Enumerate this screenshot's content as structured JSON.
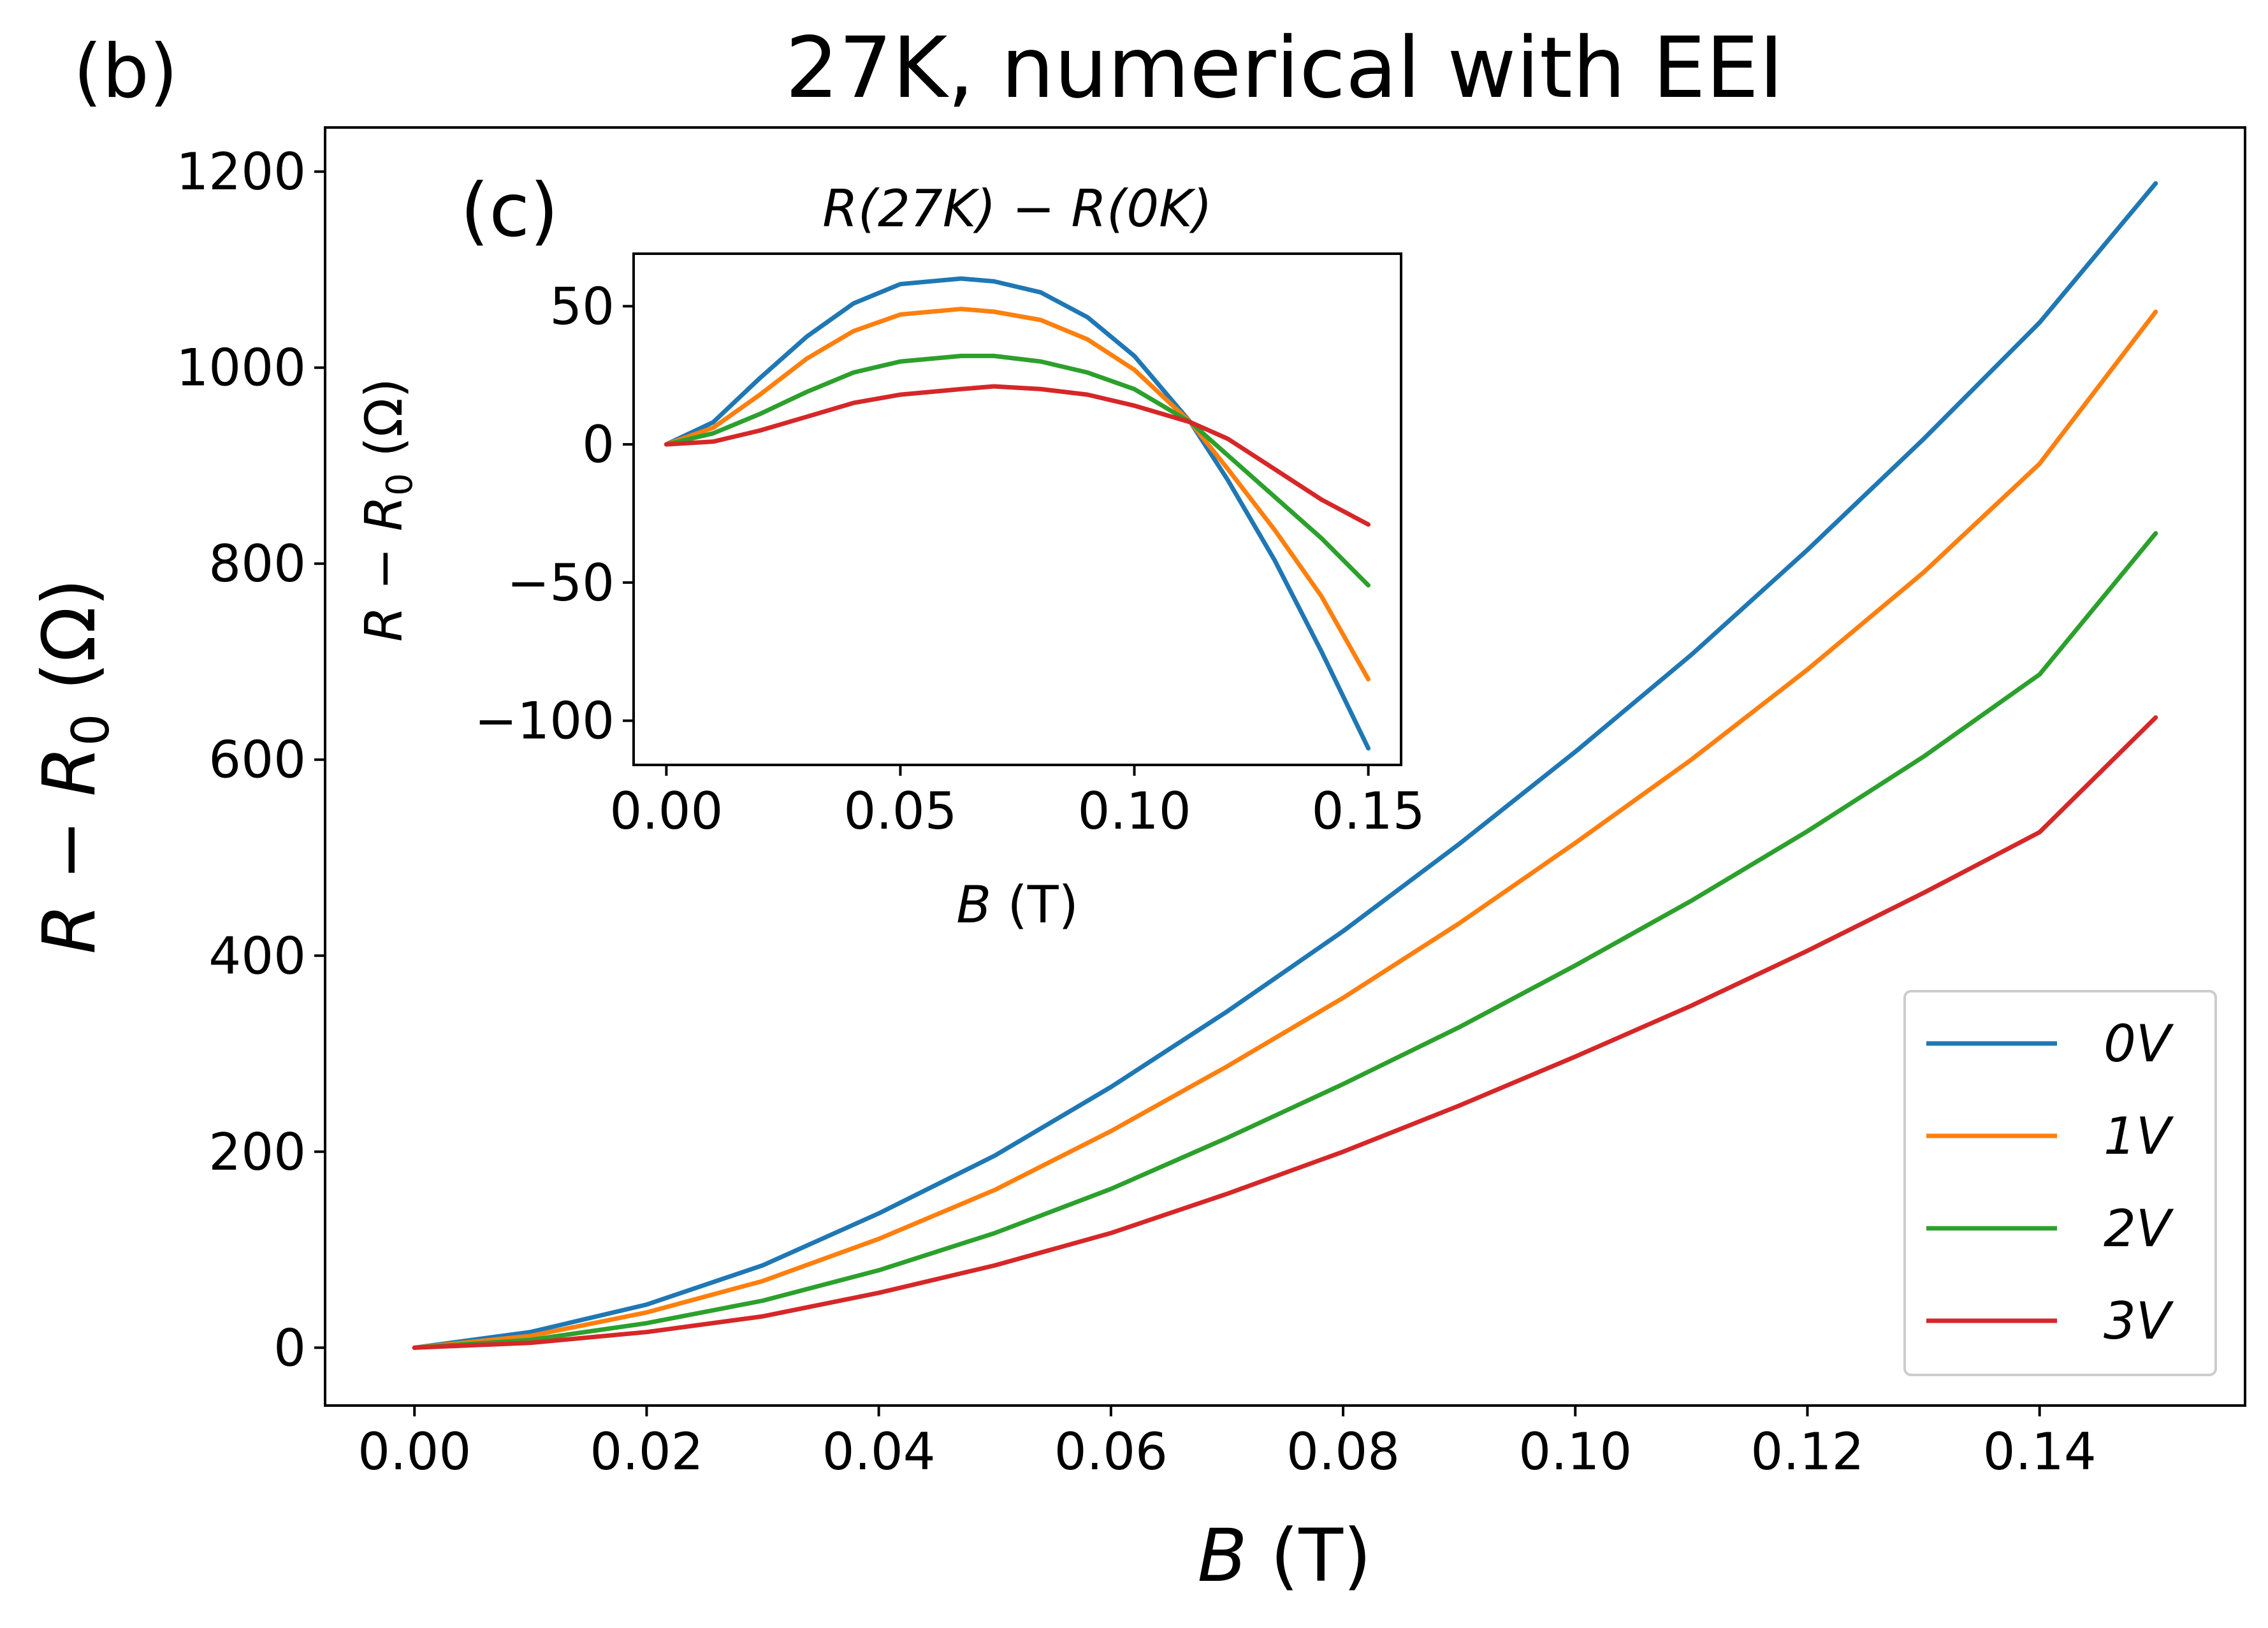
{
  "chart_data": [
    {
      "type": "line",
      "panel_label": "(b)",
      "title": "27K, numerical with EEI",
      "xlabel": "B (T)",
      "ylabel": "R − R₀ (Ω)",
      "xlim": [
        -0.0077,
        0.1577
      ],
      "ylim": [
        -59,
        1245
      ],
      "xticks": [
        0.0,
        0.02,
        0.04,
        0.06,
        0.08,
        0.1,
        0.12,
        0.14
      ],
      "xtick_labels": [
        "0.00",
        "0.02",
        "0.04",
        "0.06",
        "0.08",
        "0.10",
        "0.12",
        "0.14"
      ],
      "yticks": [
        0,
        200,
        400,
        600,
        800,
        1000,
        1200
      ],
      "ytick_labels": [
        "0",
        "200",
        "400",
        "600",
        "800",
        "1000",
        "1200"
      ],
      "legend_position": "lower-right",
      "x": [
        0.0,
        0.01,
        0.02,
        0.03,
        0.04,
        0.05,
        0.06,
        0.07,
        0.08,
        0.09,
        0.1,
        0.11,
        0.12,
        0.13,
        0.14,
        0.15
      ],
      "series": [
        {
          "name": "0V",
          "color": "#1f77b4",
          "values": [
            0,
            16,
            44,
            84,
            137,
            196,
            266,
            343,
            425,
            514,
            608,
            707,
            814,
            927,
            1046,
            1188
          ]
        },
        {
          "name": "1V",
          "color": "#ff7f0e",
          "values": [
            0,
            12,
            36,
            68,
            111,
            161,
            221,
            287,
            357,
            433,
            515,
            600,
            692,
            791,
            902,
            1057
          ]
        },
        {
          "name": "2V",
          "color": "#2ca02c",
          "values": [
            0,
            8,
            25,
            48,
            79,
            117,
            162,
            214,
            269,
            327,
            390,
            456,
            527,
            603,
            687,
            831
          ]
        },
        {
          "name": "3V",
          "color": "#d62728",
          "values": [
            0,
            5,
            16,
            32,
            56,
            84,
            117,
            157,
            200,
            247,
            297,
            349,
            405,
            464,
            526,
            643
          ]
        }
      ]
    },
    {
      "type": "line",
      "panel_label": "(c)",
      "title": "R(27K) − R(0K)",
      "xlabel": "B (T)",
      "ylabel": "R − R₀ (Ω)",
      "xlim": [
        -0.007,
        0.157
      ],
      "ylim": [
        -116,
        69
      ],
      "xticks": [
        0.0,
        0.05,
        0.1,
        0.15
      ],
      "xtick_labels": [
        "0.00",
        "0.05",
        "0.10",
        "0.15"
      ],
      "yticks": [
        50,
        0,
        -50,
        -100
      ],
      "ytick_labels": [
        "50",
        "0",
        "−50",
        "−100"
      ],
      "x": [
        0.0,
        0.01,
        0.02,
        0.03,
        0.04,
        0.05,
        0.063,
        0.07,
        0.08,
        0.09,
        0.1,
        0.112,
        0.12,
        0.13,
        0.14,
        0.15
      ],
      "series": [
        {
          "name": "0V",
          "color": "#1f77b4",
          "values": [
            0,
            8,
            24,
            39,
            51,
            58,
            60,
            59,
            55,
            46,
            32,
            8,
            -13,
            -42,
            -75,
            -110
          ]
        },
        {
          "name": "1V",
          "color": "#ff7f0e",
          "values": [
            0,
            6,
            18,
            31,
            41,
            47,
            49,
            48,
            45,
            38,
            27,
            8,
            -9,
            -31,
            -55,
            -85
          ]
        },
        {
          "name": "2V",
          "color": "#2ca02c",
          "values": [
            0,
            4,
            11,
            19,
            26,
            30,
            32,
            32,
            30,
            26,
            20,
            8,
            -4,
            -19,
            -34,
            -51
          ]
        },
        {
          "name": "3V",
          "color": "#d62728",
          "values": [
            0,
            1,
            5,
            10,
            15,
            18,
            20,
            21,
            20,
            18,
            14,
            8,
            2,
            -9,
            -20,
            -29
          ]
        }
      ]
    }
  ]
}
